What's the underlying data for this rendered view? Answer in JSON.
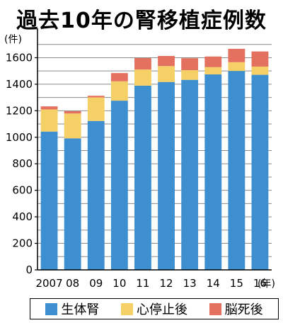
{
  "title": "過去10年の腎移植症例数",
  "chart_data": {
    "type": "bar",
    "stacked": true,
    "categories": [
      "2007",
      "08",
      "09",
      "10",
      "11",
      "12",
      "13",
      "14",
      "15",
      "16"
    ],
    "x_unit": "(年)",
    "y_unit": "(件)",
    "ylim": [
      0,
      1800
    ],
    "yticks": [
      0,
      200,
      400,
      600,
      800,
      1000,
      1200,
      1400,
      1600
    ],
    "grid": true,
    "legend_position": "bottom",
    "series": [
      {
        "name": "生体腎",
        "color": "#3d8fcf",
        "values": [
          1043,
          992,
          1123,
          1276,
          1389,
          1417,
          1433,
          1474,
          1500,
          1471
        ]
      },
      {
        "name": "心停止後",
        "color": "#f5d066",
        "values": [
          167,
          187,
          178,
          146,
          122,
          120,
          73,
          55,
          66,
          62
        ]
      },
      {
        "name": "脳死後",
        "color": "#e4705f",
        "values": [
          23,
          18,
          12,
          62,
          86,
          76,
          90,
          80,
          101,
          114
        ]
      }
    ]
  }
}
